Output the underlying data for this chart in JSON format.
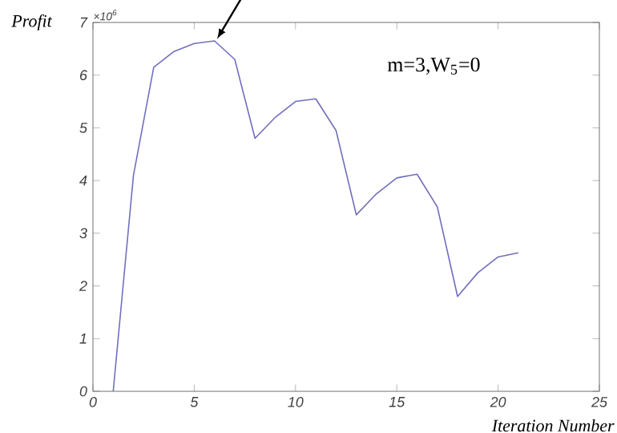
{
  "chart_data": {
    "type": "line",
    "x": [
      1,
      2,
      3,
      4,
      5,
      6,
      7,
      8,
      9,
      10,
      11,
      12,
      13,
      14,
      15,
      16,
      17,
      18,
      19,
      20,
      21
    ],
    "values": [
      0,
      4.1,
      6.15,
      6.45,
      6.6,
      6.65,
      6.3,
      4.8,
      5.2,
      5.5,
      5.55,
      4.95,
      3.35,
      3.75,
      4.05,
      4.12,
      3.5,
      1.8,
      2.25,
      2.55,
      2.63
    ],
    "color": "#6f6fbf",
    "xlim": [
      0,
      25
    ],
    "xticks": [
      0,
      5,
      10,
      15,
      20,
      25
    ],
    "ylim": [
      0,
      7
    ],
    "yticks": [
      0,
      1,
      2,
      3,
      4,
      5,
      6,
      7
    ],
    "xlabel": "Iteration Number",
    "ylabel": "Profit",
    "annotations": [
      "×10$^{6}$",
      "m=3,W$_{5}$=0"
    ],
    "marker": "none",
    "line_style": "solid"
  }
}
